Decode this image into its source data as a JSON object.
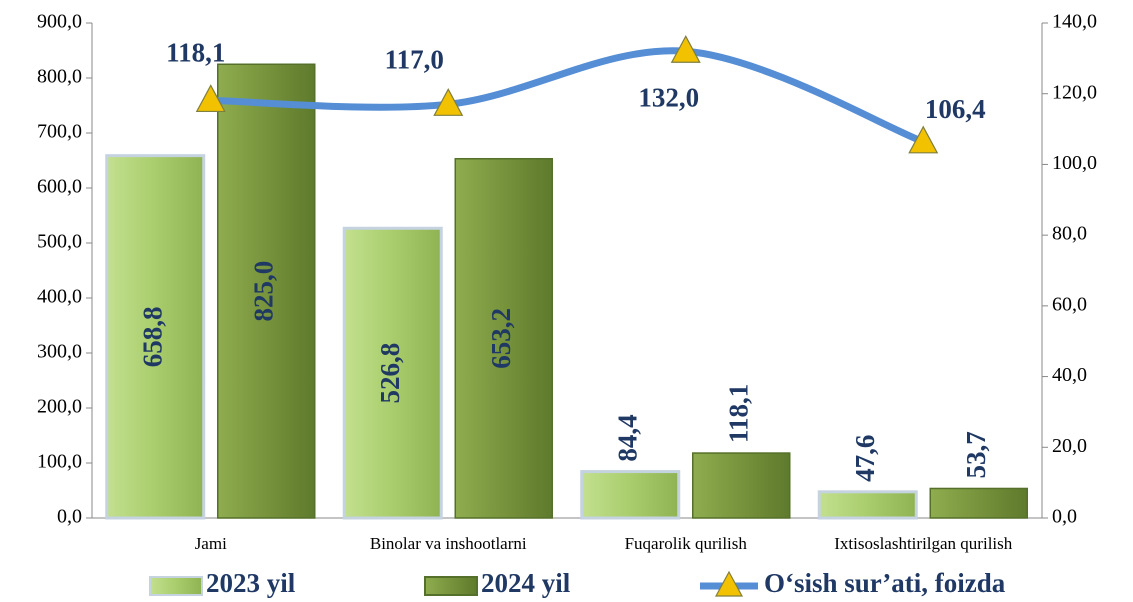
{
  "chart_data": {
    "type": "bar_line",
    "categories": [
      "Jami",
      "Binolar va inshootlarni",
      "Fuqarolik qurilish",
      "Ixtisoslashtirilgan qurilish"
    ],
    "series": [
      {
        "name": "2023 yil",
        "type": "bar",
        "color": "#a9cd6c",
        "values": [
          658.8,
          526.8,
          84.4,
          47.6
        ],
        "value_labels": [
          "658,8",
          "526,8",
          "84,4",
          "47,6"
        ]
      },
      {
        "name": "2024 yil",
        "type": "bar",
        "color": "#77933c",
        "values": [
          825.0,
          653.2,
          118.1,
          53.7
        ],
        "value_labels": [
          "825,0",
          "653,2",
          "118,1",
          "53,7"
        ]
      },
      {
        "name": "O‘sish sur’ati, foizda",
        "type": "line",
        "axis": "y2",
        "color": "#558ed5",
        "marker_color": "#f2c200",
        "values": [
          118.1,
          117.0,
          132.0,
          106.4
        ],
        "value_labels": [
          "118,1",
          "117,0",
          "132,0",
          "106,4"
        ]
      }
    ],
    "ylim": [
      0,
      900
    ],
    "yticks": [
      {
        "value": 0,
        "label": "0,0"
      },
      {
        "value": 100,
        "label": "100,0"
      },
      {
        "value": 200,
        "label": "200,0"
      },
      {
        "value": 300,
        "label": "300,0"
      },
      {
        "value": 400,
        "label": "400,0"
      },
      {
        "value": 500,
        "label": "500,0"
      },
      {
        "value": 600,
        "label": "600,0"
      },
      {
        "value": 700,
        "label": "700,0"
      },
      {
        "value": 800,
        "label": "800,0"
      },
      {
        "value": 900,
        "label": "900,0"
      }
    ],
    "y2lim": [
      0,
      140
    ],
    "y2ticks": [
      {
        "value": 0,
        "label": "0,0"
      },
      {
        "value": 20,
        "label": "20,0"
      },
      {
        "value": 40,
        "label": "40,0"
      },
      {
        "value": 60,
        "label": "60,0"
      },
      {
        "value": 80,
        "label": "80,0"
      },
      {
        "value": 100,
        "label": "100,0"
      },
      {
        "value": 120,
        "label": "120,0"
      },
      {
        "value": 140,
        "label": "140,0"
      }
    ],
    "grid": false,
    "legend": "bottom"
  }
}
